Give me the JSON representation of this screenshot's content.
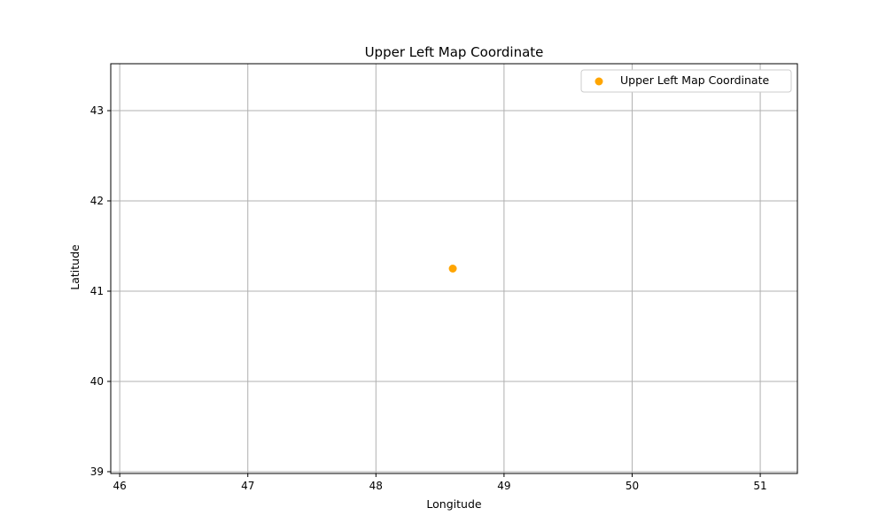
{
  "chart_data": {
    "type": "scatter",
    "title": "Upper Left Map Coordinate",
    "xlabel": "Longitude",
    "ylabel": "Latitude",
    "xlim": [
      45.93,
      51.29
    ],
    "ylim": [
      38.98,
      43.52
    ],
    "xticks": [
      46,
      47,
      48,
      49,
      50,
      51
    ],
    "yticks": [
      39,
      40,
      41,
      42,
      43
    ],
    "grid": true,
    "legend_position": "top-right",
    "series": [
      {
        "name": "Upper Left Map Coordinate",
        "color": "#ffa500",
        "points": [
          {
            "x": 48.6,
            "y": 41.25
          }
        ]
      }
    ]
  }
}
